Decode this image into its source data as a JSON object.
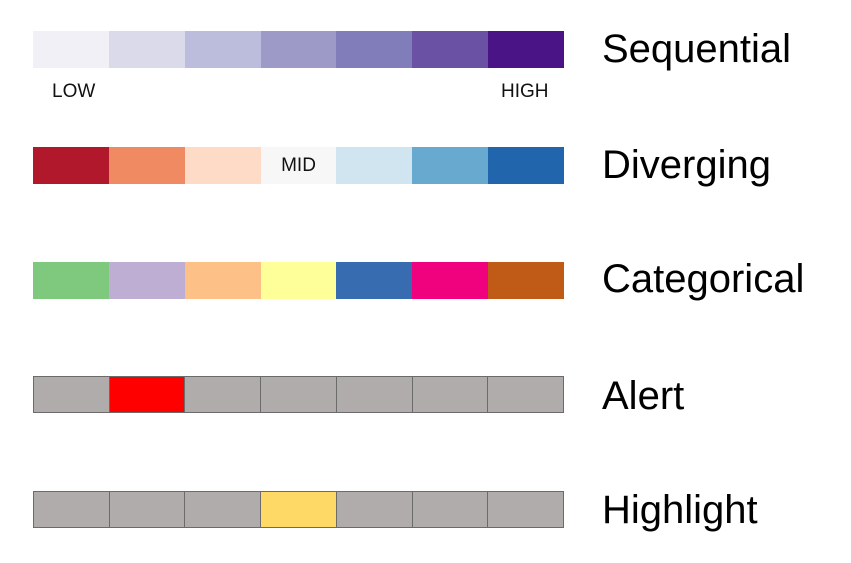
{
  "palettes": [
    {
      "id": "sequential",
      "name": "Sequential",
      "colors": [
        "#f2f0f7",
        "#dadaeb",
        "#bcbddc",
        "#9e9ac8",
        "#807dba",
        "#6a51a3",
        "#4a1486"
      ],
      "low_label": "LOW",
      "high_label": "HIGH"
    },
    {
      "id": "diverging",
      "name": "Diverging",
      "colors": [
        "#b2182b",
        "#ef8a62",
        "#fddbc7",
        "#f7f7f7",
        "#d1e5f0",
        "#67a9cf",
        "#2166ac"
      ],
      "mid_label": "MID"
    },
    {
      "id": "categorical",
      "name": "Categorical",
      "colors": [
        "#7fc97f",
        "#beaed4",
        "#fdc086",
        "#ffff99",
        "#386cb0",
        "#f0027f",
        "#bf5b17"
      ]
    },
    {
      "id": "alert",
      "name": "Alert",
      "colors": [
        "#b0acab",
        "#ff0000",
        "#b0acab",
        "#b0acab",
        "#b0acab",
        "#b0acab",
        "#b0acab"
      ]
    },
    {
      "id": "highlight",
      "name": "Highlight",
      "colors": [
        "#b0acab",
        "#b0acab",
        "#b0acab",
        "#ffd966",
        "#b0acab",
        "#b0acab",
        "#b0acab"
      ]
    }
  ]
}
